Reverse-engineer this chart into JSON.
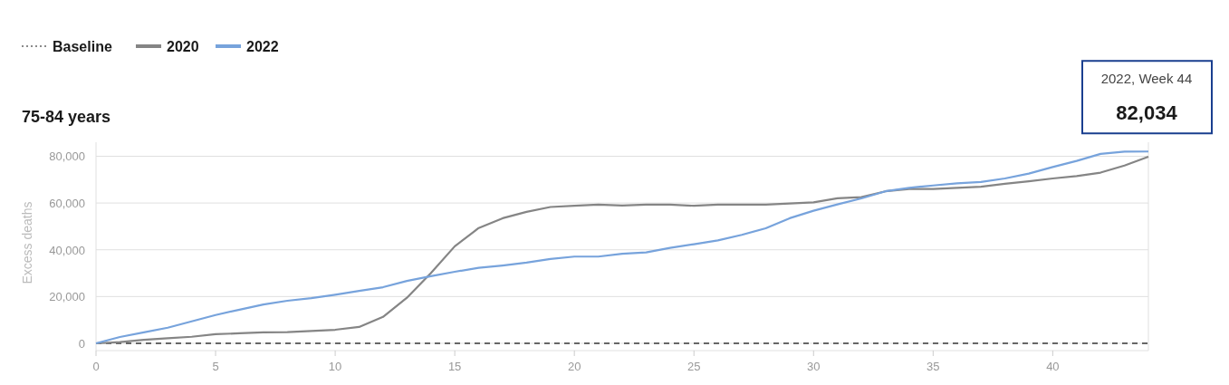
{
  "chart_data": {
    "type": "line",
    "title": "75-84 years",
    "ylabel": "Excess deaths",
    "x": [
      0,
      1,
      2,
      3,
      4,
      5,
      6,
      7,
      8,
      9,
      10,
      11,
      12,
      13,
      14,
      15,
      16,
      17,
      18,
      19,
      20,
      21,
      22,
      23,
      24,
      25,
      26,
      27,
      28,
      29,
      30,
      31,
      32,
      33,
      34,
      35,
      36,
      37,
      38,
      39,
      40,
      41,
      42,
      43,
      44
    ],
    "series": [
      {
        "name": "Baseline",
        "color": "#666666",
        "line_style": "dashed",
        "values": [
          0,
          0,
          0,
          0,
          0,
          0,
          0,
          0,
          0,
          0,
          0,
          0,
          0,
          0,
          0,
          0,
          0,
          0,
          0,
          0,
          0,
          0,
          0,
          0,
          0,
          0,
          0,
          0,
          0,
          0,
          0,
          0,
          0,
          0,
          0,
          0,
          0,
          0,
          0,
          0,
          0,
          0,
          0,
          0,
          0
        ]
      },
      {
        "name": "2020",
        "color": "#858585",
        "values": [
          0,
          500,
          1500,
          2200,
          2800,
          3900,
          4300,
          4700,
          4800,
          5300,
          5800,
          7000,
          11300,
          19500,
          30000,
          41500,
          49300,
          53500,
          56200,
          58300,
          58800,
          59300,
          58900,
          59300,
          59300,
          58800,
          59300,
          59300,
          59300,
          59800,
          60300,
          62000,
          62500,
          65000,
          66000,
          66000,
          66500,
          67000,
          68200,
          69300,
          70500,
          71500,
          73000,
          76000,
          79800
        ]
      },
      {
        "name": "2022",
        "color": "#77a3dc",
        "values": [
          0,
          2700,
          4700,
          6700,
          9400,
          12100,
          14400,
          16600,
          18200,
          19300,
          20800,
          22400,
          24000,
          26700,
          28700,
          30600,
          32300,
          33300,
          34500,
          36100,
          37100,
          37100,
          38300,
          38900,
          40800,
          42400,
          44000,
          46400,
          49200,
          53500,
          56700,
          59400,
          62000,
          65000,
          66500,
          67500,
          68400,
          69000,
          70500,
          72600,
          75400,
          78000,
          81000,
          82000,
          82034
        ]
      }
    ],
    "xlim": [
      0,
      44
    ],
    "ylim": [
      0,
      86000
    ],
    "xticks": [
      0,
      5,
      10,
      15,
      20,
      25,
      30,
      35,
      40
    ],
    "yticks": [
      0,
      {
        "value": 20000,
        "label": "20,000"
      },
      {
        "value": 40000,
        "label": "40,000"
      },
      {
        "value": 60000,
        "label": "60,000"
      },
      {
        "value": 80000,
        "label": "80,000"
      }
    ],
    "grid": "y",
    "legend": "top left",
    "line_style": "solid",
    "annotations": [
      "2022, Week 44",
      {
        "text": "82,034",
        "x": 44,
        "y": 82034
      }
    ]
  }
}
